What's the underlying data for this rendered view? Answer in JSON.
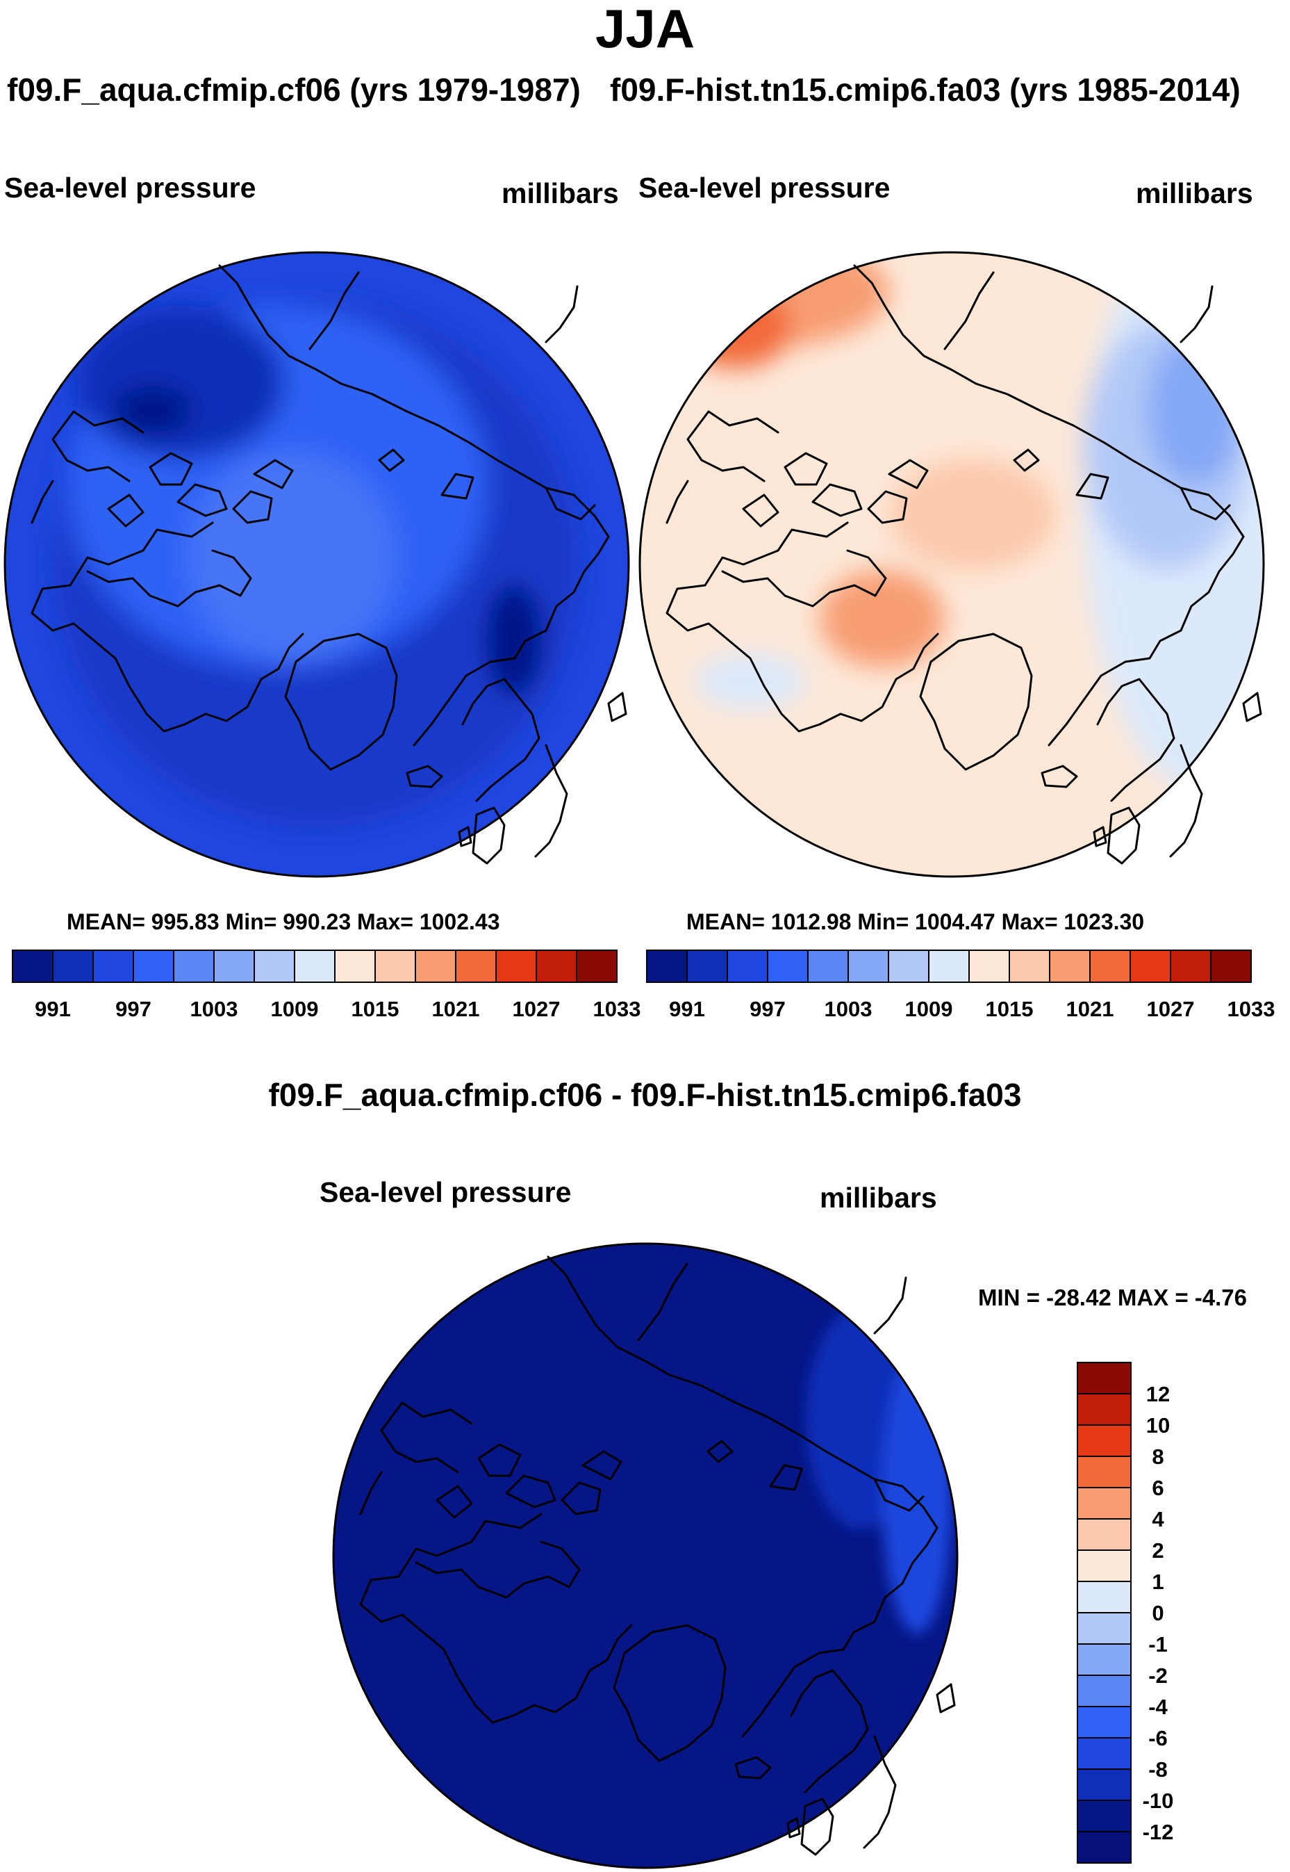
{
  "chart_data": [
    {
      "type": "heatmap",
      "projection": "north-polar-stereographic",
      "season": "JJA",
      "case": "f09.F_aqua.cfmip.cf06 (yrs 1979-1987)",
      "variable": "Sea-level pressure",
      "units": "millibars",
      "stats": {
        "mean": 995.83,
        "min": 990.23,
        "max": 1002.43
      },
      "stats_label": "MEAN= 995.83  Min= 990.23  Max= 1002.43",
      "colorbar": {
        "levels": [
          991,
          994,
          997,
          1000,
          1003,
          1006,
          1009,
          1012,
          1015,
          1018,
          1021,
          1024,
          1027,
          1030,
          1033
        ],
        "tick_labels": [
          "991",
          "997",
          "1003",
          "1009",
          "1015",
          "1021",
          "1027",
          "1033"
        ],
        "colors": [
          "#061686",
          "#0f2fb8",
          "#1f46de",
          "#2f62f5",
          "#5a87f4",
          "#86a9f6",
          "#b2c9f8",
          "#dce9fb",
          "#fde8d8",
          "#fcc9ac",
          "#f89d72",
          "#f26a3a",
          "#e63a17",
          "#c21d08",
          "#8a0b04"
        ]
      }
    },
    {
      "type": "heatmap",
      "projection": "north-polar-stereographic",
      "season": "JJA",
      "case": "f09.F-hist.tn15.cmip6.fa03 (yrs 1985-2014)",
      "variable": "Sea-level pressure",
      "units": "millibars",
      "stats": {
        "mean": 1012.98,
        "min": 1004.47,
        "max": 1023.3
      },
      "stats_label": "MEAN= 1012.98  Min= 1004.47  Max= 1023.30",
      "colorbar": {
        "levels": [
          991,
          994,
          997,
          1000,
          1003,
          1006,
          1009,
          1012,
          1015,
          1018,
          1021,
          1024,
          1027,
          1030,
          1033
        ],
        "tick_labels": [
          "991",
          "997",
          "1003",
          "1009",
          "1015",
          "1021",
          "1027",
          "1033"
        ],
        "colors": [
          "#061686",
          "#0f2fb8",
          "#1f46de",
          "#2f62f5",
          "#5a87f4",
          "#86a9f6",
          "#b2c9f8",
          "#dce9fb",
          "#fde8d8",
          "#fcc9ac",
          "#f89d72",
          "#f26a3a",
          "#e63a17",
          "#c21d08",
          "#8a0b04"
        ]
      }
    },
    {
      "type": "heatmap",
      "projection": "north-polar-stereographic",
      "season": "JJA",
      "case": "f09.F_aqua.cfmip.cf06 - f09.F-hist.tn15.cmip6.fa03",
      "variable": "Sea-level pressure",
      "units": "millibars",
      "stats": {
        "min": -28.42,
        "max": -4.76
      },
      "stats_label": "MIN = -28.42 MAX =  -4.76",
      "colorbar": {
        "orientation": "vertical",
        "levels": [
          12,
          10,
          8,
          6,
          4,
          2,
          1,
          0,
          -1,
          -2,
          -4,
          -6,
          -8,
          -10,
          -12
        ],
        "tick_labels": [
          "12",
          "10",
          "8",
          "6",
          "4",
          "2",
          "1",
          "0",
          "-1",
          "-2",
          "-4",
          "-6",
          "-8",
          "-10",
          "-12"
        ],
        "colors": [
          "#8a0b04",
          "#c21d08",
          "#e63a17",
          "#f26a3a",
          "#f89d72",
          "#fcc9ac",
          "#fde8d8",
          "#dce9fb",
          "#b2c9f8",
          "#86a9f6",
          "#5a87f4",
          "#2f62f5",
          "#1f46de",
          "#0f2fb8",
          "#061686",
          "#05107a"
        ]
      }
    }
  ],
  "title": "JJA",
  "panels": {
    "left": {
      "title": "f09.F_aqua.cfmip.cf06 (yrs 1979-1987)",
      "varname": "Sea-level pressure",
      "units": "millibars"
    },
    "right": {
      "title": "f09.F-hist.tn15.cmip6.fa03 (yrs 1985-2014)",
      "varname": "Sea-level pressure",
      "units": "millibars"
    },
    "diff": {
      "title": "f09.F_aqua.cfmip.cf06 - f09.F-hist.tn15.cmip6.fa03",
      "varname": "Sea-level pressure",
      "units": "millibars"
    }
  }
}
